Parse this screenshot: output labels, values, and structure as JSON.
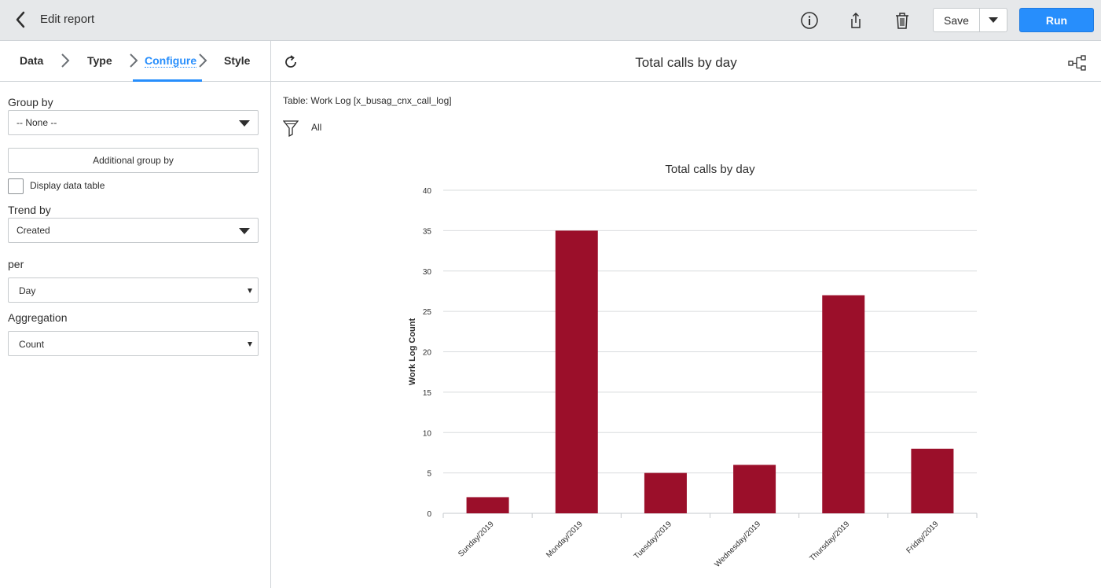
{
  "topbar": {
    "title": "Edit report",
    "save_label": "Save",
    "run_label": "Run",
    "icons": [
      "back-icon",
      "info-icon",
      "share-icon",
      "trash-icon",
      "caret-down-icon"
    ]
  },
  "steps": [
    {
      "label": "Data"
    },
    {
      "label": "Type"
    },
    {
      "label": "Configure"
    },
    {
      "label": "Style"
    }
  ],
  "config": {
    "group_by_label": "Group by",
    "group_by_value": "-- None --",
    "additional_group_by_label": "Additional group by",
    "display_data_table_label": "Display data table",
    "trend_by_label": "Trend by",
    "trend_by_value": "Created",
    "per_label": "per",
    "per_value": "Day",
    "aggregation_label": "Aggregation",
    "aggregation_value": "Count"
  },
  "report": {
    "title": "Total calls by day",
    "table_label": "Table: Work Log [x_busag_cnx_call_log]",
    "filter_label": "All"
  },
  "chart_data": {
    "type": "bar",
    "title": "Total calls by day",
    "xlabel": "",
    "ylabel": "Work Log Count",
    "categories": [
      "Sunday/2019",
      "Monday/2019",
      "Tuesday/2019",
      "Wednesday/2019",
      "Thursday/2019",
      "Friday/2019"
    ],
    "values": [
      2,
      35,
      5,
      6,
      27,
      8
    ],
    "ylim": [
      0,
      40
    ],
    "yticks": [
      0,
      5,
      10,
      15,
      20,
      25,
      30,
      35,
      40
    ],
    "grid": true,
    "bar_color": "#9b0f2a"
  },
  "colors": {
    "accent": "#278efc",
    "topbar_bg": "#e6e8ea"
  }
}
